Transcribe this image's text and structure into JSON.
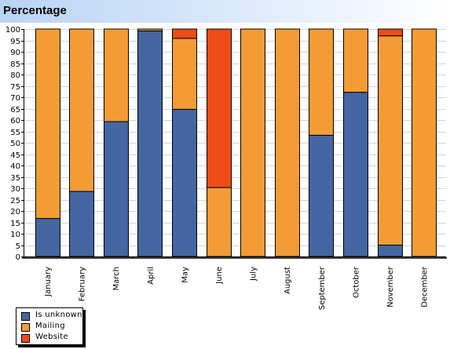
{
  "header": {
    "title": "Percentage"
  },
  "chart_data": {
    "type": "bar",
    "stacked": true,
    "title": "",
    "xlabel": "",
    "ylabel": "",
    "ylim": [
      0,
      100
    ],
    "yticks": [
      0,
      5,
      10,
      15,
      20,
      25,
      30,
      35,
      40,
      45,
      50,
      55,
      60,
      65,
      70,
      75,
      80,
      85,
      90,
      95,
      100
    ],
    "grid": true,
    "legend_position": "bottom-left",
    "categories": [
      "January",
      "February",
      "March",
      "April",
      "May",
      "June",
      "July",
      "August",
      "September",
      "October",
      "November",
      "December"
    ],
    "series": [
      {
        "name": "Is unknown",
        "color": "#4566a1",
        "values": [
          16.7,
          28.6,
          59.3,
          99.2,
          64.7,
          0,
          0,
          0,
          53.3,
          72.2,
          5,
          0
        ]
      },
      {
        "name": "Mailing",
        "color": "#f39c37",
        "values": [
          83.3,
          71.4,
          40.7,
          0.8,
          31.2,
          30.3,
          100,
          100,
          46.7,
          27.8,
          92,
          100
        ]
      },
      {
        "name": "Website",
        "color": "#f04c17",
        "values": [
          0,
          0,
          0,
          0,
          4.1,
          69.7,
          0,
          0,
          0,
          0,
          3,
          0
        ]
      }
    ]
  }
}
